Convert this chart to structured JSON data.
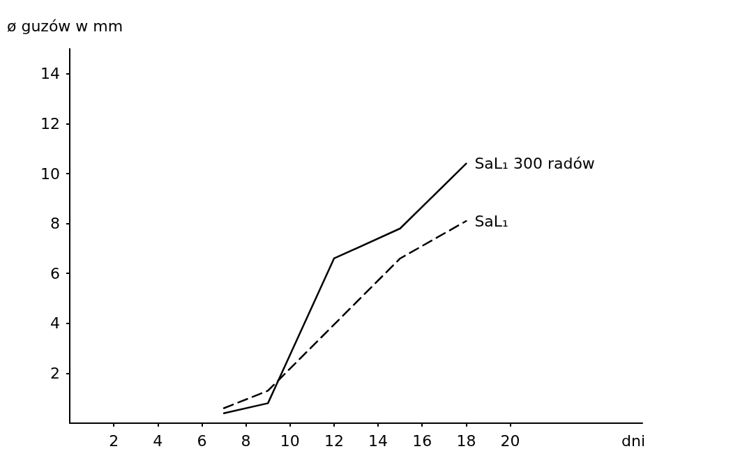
{
  "chart_data": {
    "type": "line",
    "ylabel": "ø guzów w mm",
    "xlabel": "dni",
    "xlim": [
      0,
      26
    ],
    "xticks": [
      2,
      4,
      6,
      8,
      10,
      12,
      14,
      16,
      18,
      20
    ],
    "ylim": [
      0,
      15
    ],
    "yticks": [
      2,
      4,
      6,
      8,
      10,
      12,
      14
    ],
    "grid": false,
    "legend": false,
    "marker": "none",
    "series": [
      {
        "name": "SaL₁ 300 radów",
        "color": "#000000",
        "line_style": "solid",
        "x": [
          7,
          9,
          12,
          15,
          18
        ],
        "values": [
          0.4,
          0.8,
          6.6,
          7.8,
          10.4
        ]
      },
      {
        "name": "SaL₁",
        "color": "#000000",
        "line_style": "dashed",
        "x": [
          7,
          9,
          15,
          18
        ],
        "values": [
          0.6,
          1.3,
          6.6,
          8.1
        ]
      }
    ]
  }
}
